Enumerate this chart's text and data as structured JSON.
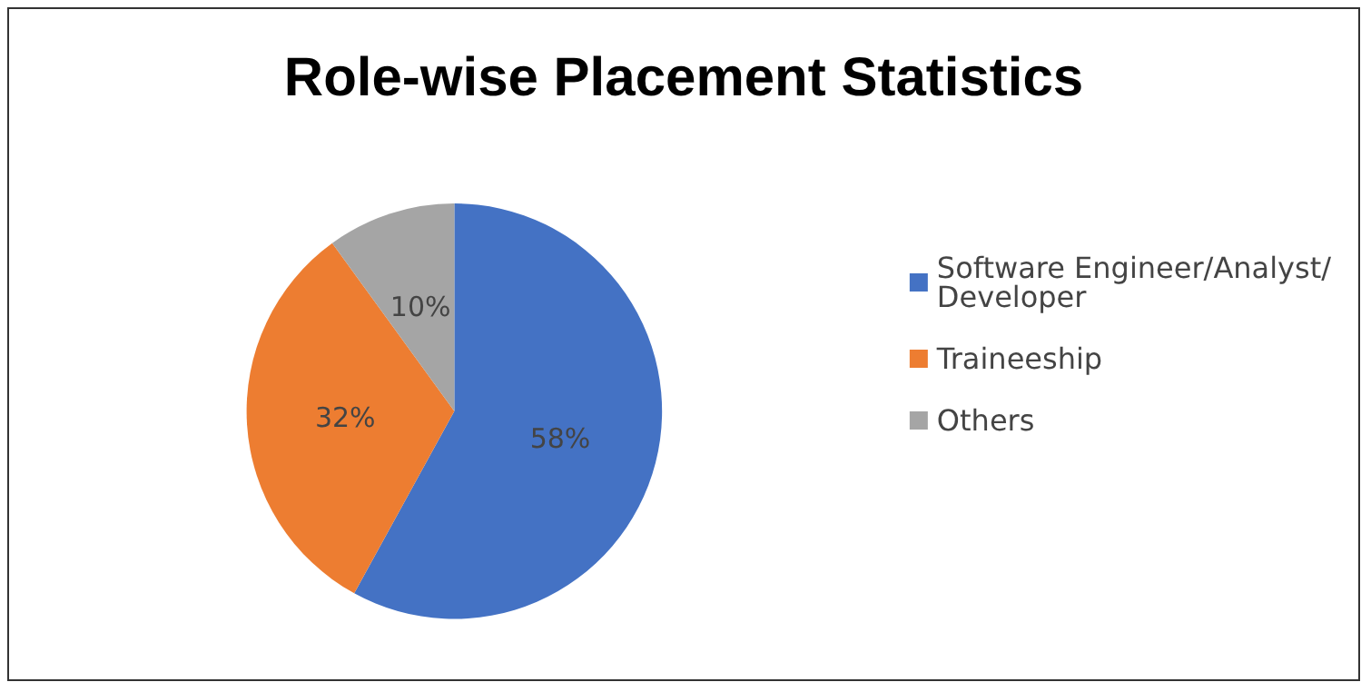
{
  "chart_data": {
    "type": "pie",
    "title": "Role-wise Placement Statistics",
    "categories": [
      "Software Engineer/Analyst/Developer",
      "Traineeship",
      "Others"
    ],
    "values": [
      58,
      32,
      10
    ],
    "colors": [
      "#4472c4",
      "#ed7d31",
      "#a5a5a5"
    ],
    "value_labels": [
      "58%",
      "32%",
      "10%"
    ],
    "legend": "right"
  }
}
